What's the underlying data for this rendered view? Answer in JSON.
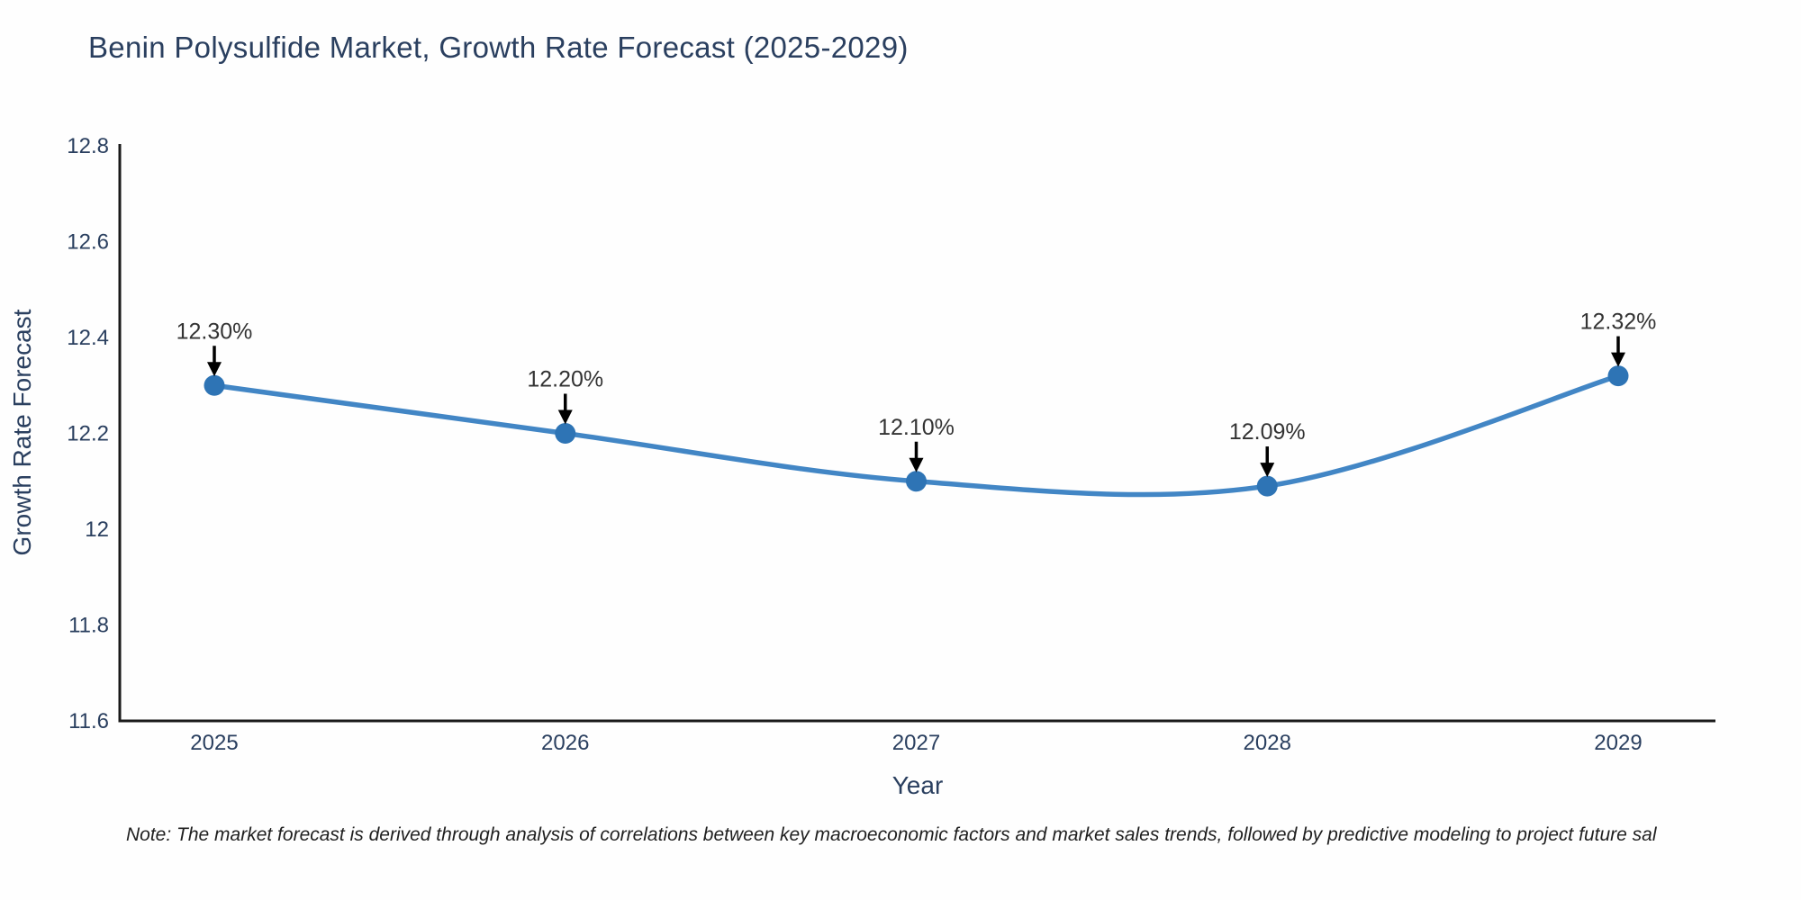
{
  "note": "Note: The market forecast is derived through analysis of correlations between key macroeconomic factors and market sales trends, followed by predictive modeling to project future sal",
  "chart_data": {
    "type": "line",
    "title": "Benin Polysulfide Market, Growth Rate Forecast (2025-2029)",
    "xlabel": "Year",
    "ylabel": "Growth Rate Forecast",
    "x": [
      2025,
      2026,
      2027,
      2028,
      2029
    ],
    "series": [
      {
        "name": "Growth Rate Forecast",
        "values": [
          12.3,
          12.2,
          12.1,
          12.09,
          12.32
        ]
      }
    ],
    "point_labels": [
      "12.30%",
      "12.20%",
      "12.10%",
      "12.09%",
      "12.32%"
    ],
    "ylim": [
      11.6,
      12.8
    ],
    "yticks": [
      11.6,
      11.8,
      12,
      12.2,
      12.4,
      12.6,
      12.8
    ],
    "ytick_labels": [
      "11.6",
      "11.8",
      "12",
      "12.2",
      "12.4",
      "12.6",
      "12.8"
    ],
    "grid": false,
    "legend_position": "none",
    "line_shape": "spline",
    "annotation_arrows": true,
    "colors": {
      "line": "#4286c5",
      "marker": "#2e74b5",
      "axis_line": "#1a1a1a",
      "axis_text": "#2a3f5f",
      "title_text": "#2a3f5f",
      "annotation_text": "#333333",
      "arrow": "#000000",
      "note_text": "#1f1f1f",
      "background": "#fefefe"
    }
  }
}
